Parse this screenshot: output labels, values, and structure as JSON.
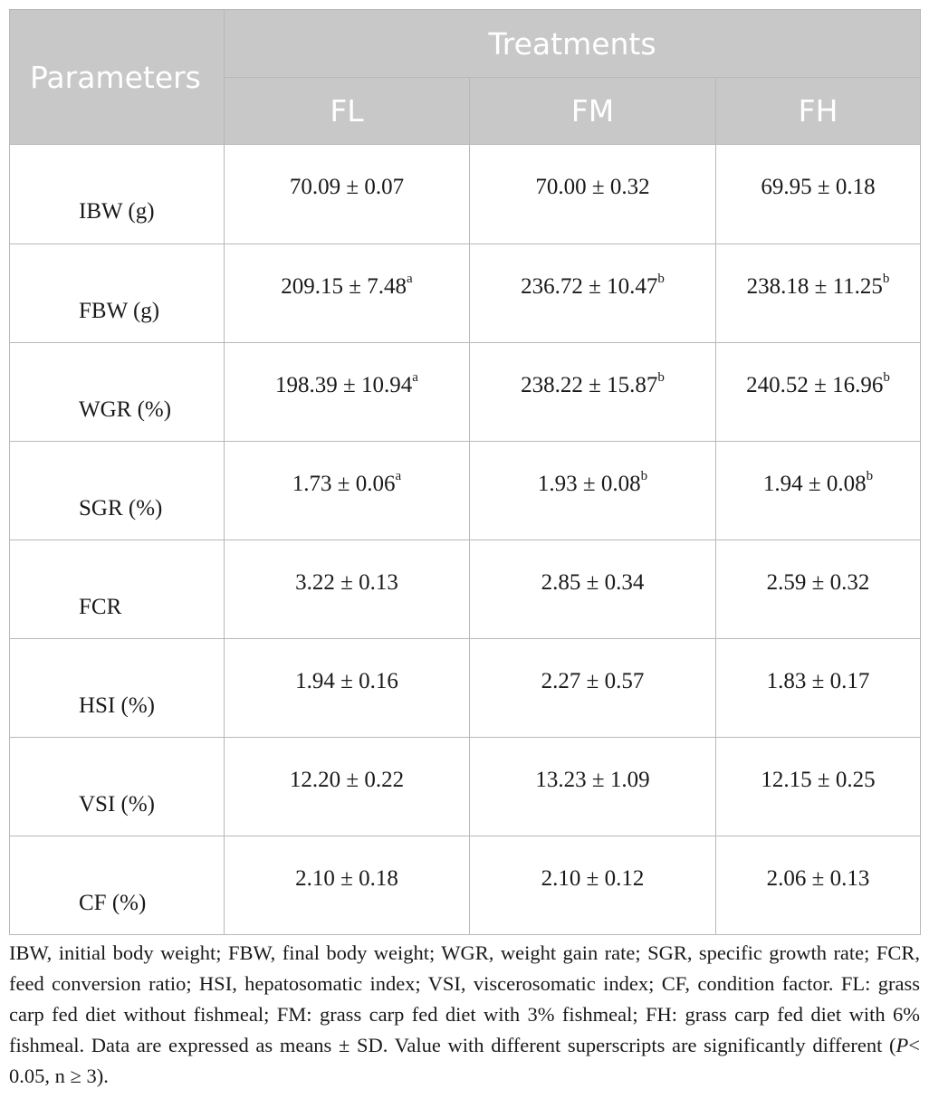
{
  "table": {
    "header": {
      "parameters": "Parameters",
      "treatments": "Treatments",
      "groups": [
        "FL",
        "FM",
        "FH"
      ]
    },
    "rows": [
      {
        "param": "IBW (g)",
        "cells": [
          {
            "v": "70.09 ± 0.07",
            "s": ""
          },
          {
            "v": "70.00 ± 0.32",
            "s": ""
          },
          {
            "v": "69.95 ± 0.18",
            "s": ""
          }
        ]
      },
      {
        "param": "FBW (g)",
        "cells": [
          {
            "v": "209.15 ± 7.48",
            "s": "a"
          },
          {
            "v": "236.72 ± 10.47",
            "s": "b"
          },
          {
            "v": "238.18 ± 11.25",
            "s": "b"
          }
        ]
      },
      {
        "param": "WGR (%)",
        "cells": [
          {
            "v": "198.39 ± 10.94",
            "s": "a"
          },
          {
            "v": "238.22 ± 15.87",
            "s": "b"
          },
          {
            "v": "240.52 ± 16.96",
            "s": "b"
          }
        ]
      },
      {
        "param": "SGR (%)",
        "cells": [
          {
            "v": "1.73 ± 0.06",
            "s": "a"
          },
          {
            "v": "1.93 ± 0.08",
            "s": "b"
          },
          {
            "v": "1.94 ± 0.08",
            "s": "b"
          }
        ]
      },
      {
        "param": "FCR",
        "cells": [
          {
            "v": "3.22 ± 0.13",
            "s": ""
          },
          {
            "v": "2.85 ± 0.34",
            "s": ""
          },
          {
            "v": "2.59 ± 0.32",
            "s": ""
          }
        ]
      },
      {
        "param": "HSI (%)",
        "cells": [
          {
            "v": "1.94 ± 0.16",
            "s": ""
          },
          {
            "v": "2.27 ± 0.57",
            "s": ""
          },
          {
            "v": "1.83 ± 0.17",
            "s": ""
          }
        ]
      },
      {
        "param": "VSI (%)",
        "cells": [
          {
            "v": "12.20 ± 0.22",
            "s": ""
          },
          {
            "v": "13.23 ± 1.09",
            "s": ""
          },
          {
            "v": "12.15 ± 0.25",
            "s": ""
          }
        ]
      },
      {
        "param": "CF (%)",
        "cells": [
          {
            "v": "2.10 ± 0.18",
            "s": ""
          },
          {
            "v": "2.10 ± 0.12",
            "s": ""
          },
          {
            "v": "2.06 ± 0.13",
            "s": ""
          }
        ]
      }
    ]
  },
  "footnote": {
    "text_before": "IBW, initial body weight; FBW, final body weight; WGR, weight gain rate; SGR, specific growth rate; FCR, feed conversion ratio; HSI, hepatosomatic index; VSI, viscerosomatic index; CF, condition factor. FL: grass carp fed diet without fishmeal; FM: grass carp fed diet with 3% fishmeal; FH: grass carp fed diet with 6% fishmeal. Data are expressed as means ± SD. Value with different superscripts are significantly different (",
    "p_symbol": "P",
    "text_after": "< 0.05, n ≥ 3)."
  }
}
